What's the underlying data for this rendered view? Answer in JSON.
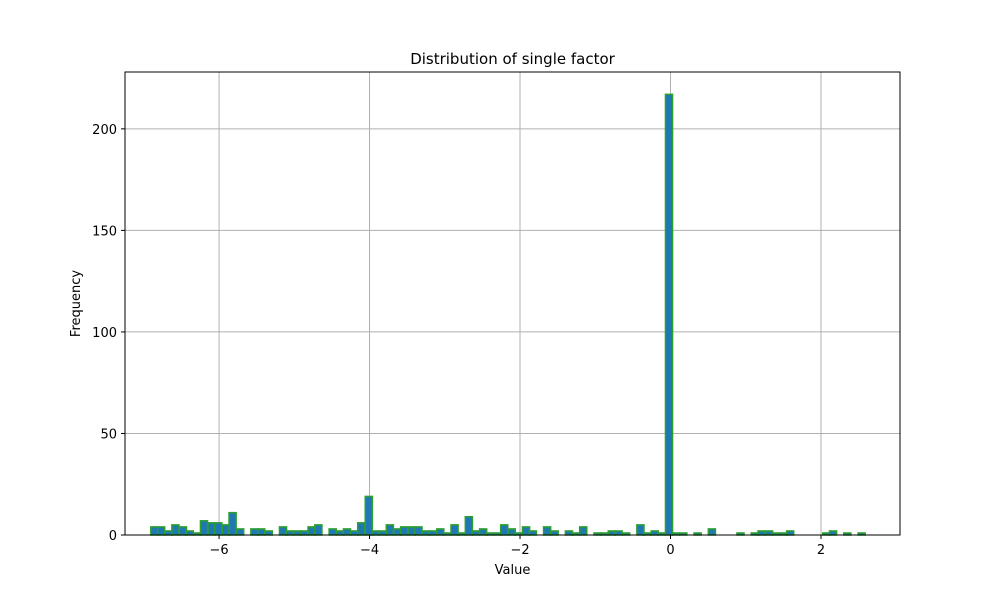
{
  "chart_data": {
    "type": "bar",
    "title": "Distribution of single factor",
    "xlabel": "Value",
    "ylabel": "Frequency",
    "xlim": [
      -7.25,
      3.05
    ],
    "ylim": [
      0,
      228
    ],
    "xticks": [
      -6,
      -4,
      -2,
      0,
      2
    ],
    "xtick_labels": [
      "−6",
      "−4",
      "−2",
      "0",
      "2"
    ],
    "yticks": [
      0,
      50,
      100,
      150,
      200
    ],
    "ytick_labels": [
      "0",
      "50",
      "100",
      "150",
      "200"
    ],
    "grid": true,
    "colors": {
      "bar_fill": "#1f77b4",
      "bar_edge": "#2ca02c",
      "grid": "#b0b0b0"
    },
    "bin_width": 0.0945,
    "bins": [
      [
        -6.86,
        4
      ],
      [
        -6.77,
        4
      ],
      [
        -6.67,
        2
      ],
      [
        -6.58,
        5
      ],
      [
        -6.48,
        4
      ],
      [
        -6.39,
        2
      ],
      [
        -6.29,
        1
      ],
      [
        -6.2,
        7
      ],
      [
        -6.1,
        6
      ],
      [
        -6.01,
        6
      ],
      [
        -5.91,
        5
      ],
      [
        -5.82,
        11
      ],
      [
        -5.72,
        3
      ],
      [
        -5.53,
        3
      ],
      [
        -5.44,
        3
      ],
      [
        -5.34,
        2
      ],
      [
        -5.15,
        4
      ],
      [
        -5.06,
        2
      ],
      [
        -4.96,
        2
      ],
      [
        -4.87,
        2
      ],
      [
        -4.77,
        4
      ],
      [
        -4.68,
        5
      ],
      [
        -4.49,
        3
      ],
      [
        -4.39,
        2
      ],
      [
        -4.3,
        3
      ],
      [
        -4.2,
        2
      ],
      [
        -4.11,
        6
      ],
      [
        -4.01,
        19
      ],
      [
        -3.92,
        2
      ],
      [
        -3.82,
        2
      ],
      [
        -3.73,
        5
      ],
      [
        -3.63,
        3
      ],
      [
        -3.54,
        4
      ],
      [
        -3.44,
        4
      ],
      [
        -3.35,
        4
      ],
      [
        -3.25,
        2
      ],
      [
        -3.16,
        2
      ],
      [
        -3.06,
        3
      ],
      [
        -2.97,
        1
      ],
      [
        -2.87,
        5
      ],
      [
        -2.78,
        1
      ],
      [
        -2.68,
        9
      ],
      [
        -2.59,
        2
      ],
      [
        -2.49,
        3
      ],
      [
        -2.4,
        1
      ],
      [
        -2.3,
        1
      ],
      [
        -2.21,
        5
      ],
      [
        -2.11,
        3
      ],
      [
        -2.02,
        1
      ],
      [
        -1.92,
        4
      ],
      [
        -1.83,
        2
      ],
      [
        -1.64,
        4
      ],
      [
        -1.54,
        2
      ],
      [
        -1.35,
        2
      ],
      [
        -1.26,
        1
      ],
      [
        -1.16,
        4
      ],
      [
        -0.97,
        1
      ],
      [
        -0.88,
        1
      ],
      [
        -0.78,
        2
      ],
      [
        -0.69,
        2
      ],
      [
        -0.59,
        1
      ],
      [
        -0.4,
        5
      ],
      [
        -0.31,
        1
      ],
      [
        -0.21,
        2
      ],
      [
        -0.12,
        1
      ],
      [
        -0.02,
        217
      ],
      [
        0.07,
        1
      ],
      [
        0.17,
        1
      ],
      [
        0.36,
        1
      ],
      [
        0.55,
        3
      ],
      [
        0.93,
        1
      ],
      [
        1.12,
        1
      ],
      [
        1.21,
        2
      ],
      [
        1.31,
        2
      ],
      [
        1.4,
        1
      ],
      [
        1.5,
        1
      ],
      [
        1.59,
        2
      ],
      [
        2.07,
        1
      ],
      [
        2.16,
        2
      ],
      [
        2.35,
        1
      ],
      [
        2.54,
        1
      ]
    ]
  }
}
